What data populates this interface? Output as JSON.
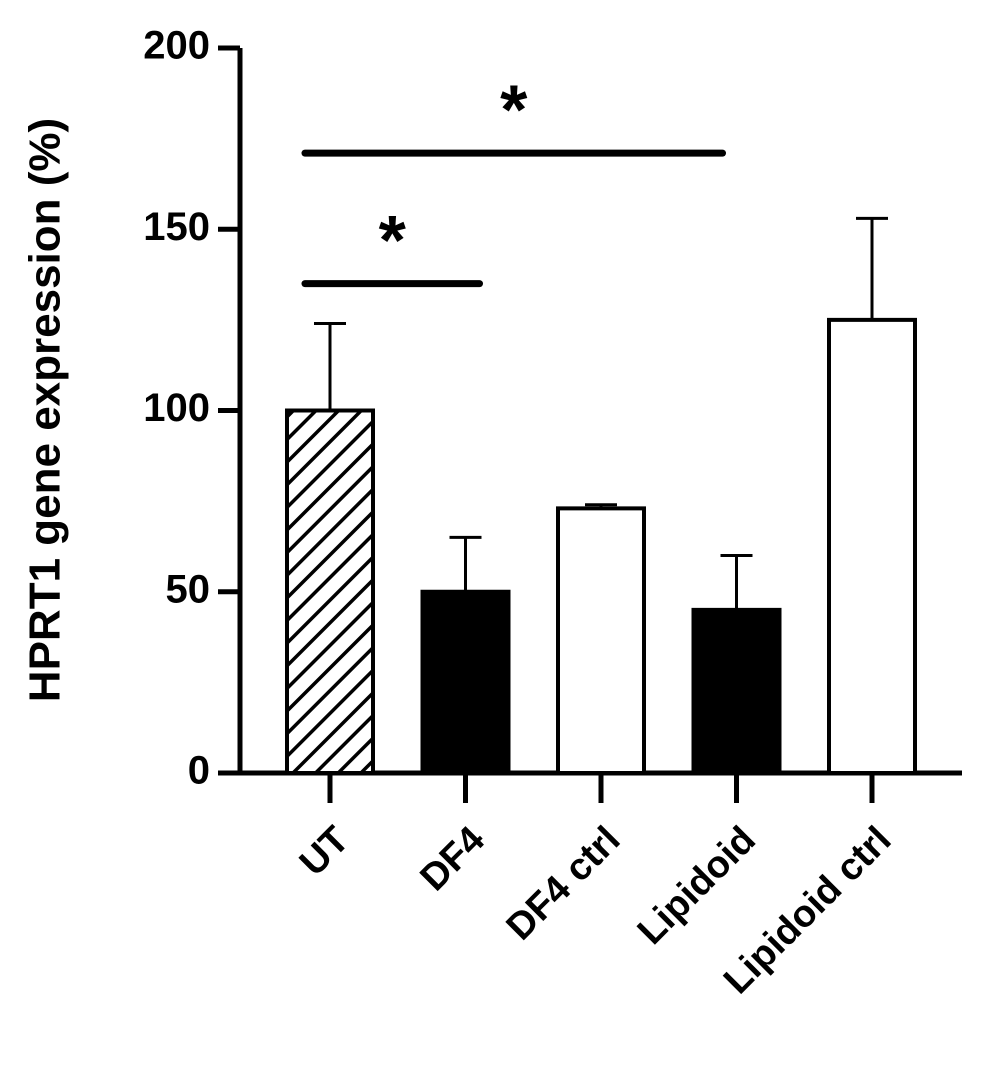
{
  "chart_data": {
    "type": "bar",
    "y_label": "HPRT1 gene expression (%)",
    "categories": [
      "UT",
      "DF4",
      "DF4 ctrl",
      "Lipidoid",
      "Lipidoid ctrl"
    ],
    "values": [
      100,
      50,
      73,
      45,
      125
    ],
    "errors": [
      24,
      15,
      1,
      15,
      28
    ],
    "colors": [
      "#ffffff",
      "#000000",
      "#ffffff",
      "#000000",
      "#ffffff"
    ],
    "hatch": [
      true,
      false,
      false,
      false,
      false
    ],
    "ylim": [
      0,
      200
    ],
    "yticks": [
      0,
      50,
      100,
      150,
      200
    ],
    "annotations": [
      {
        "text": "*",
        "from": 0,
        "to": 1,
        "y": 135
      },
      {
        "text": "*",
        "from": 0,
        "to": 3,
        "y": 171
      }
    ]
  }
}
